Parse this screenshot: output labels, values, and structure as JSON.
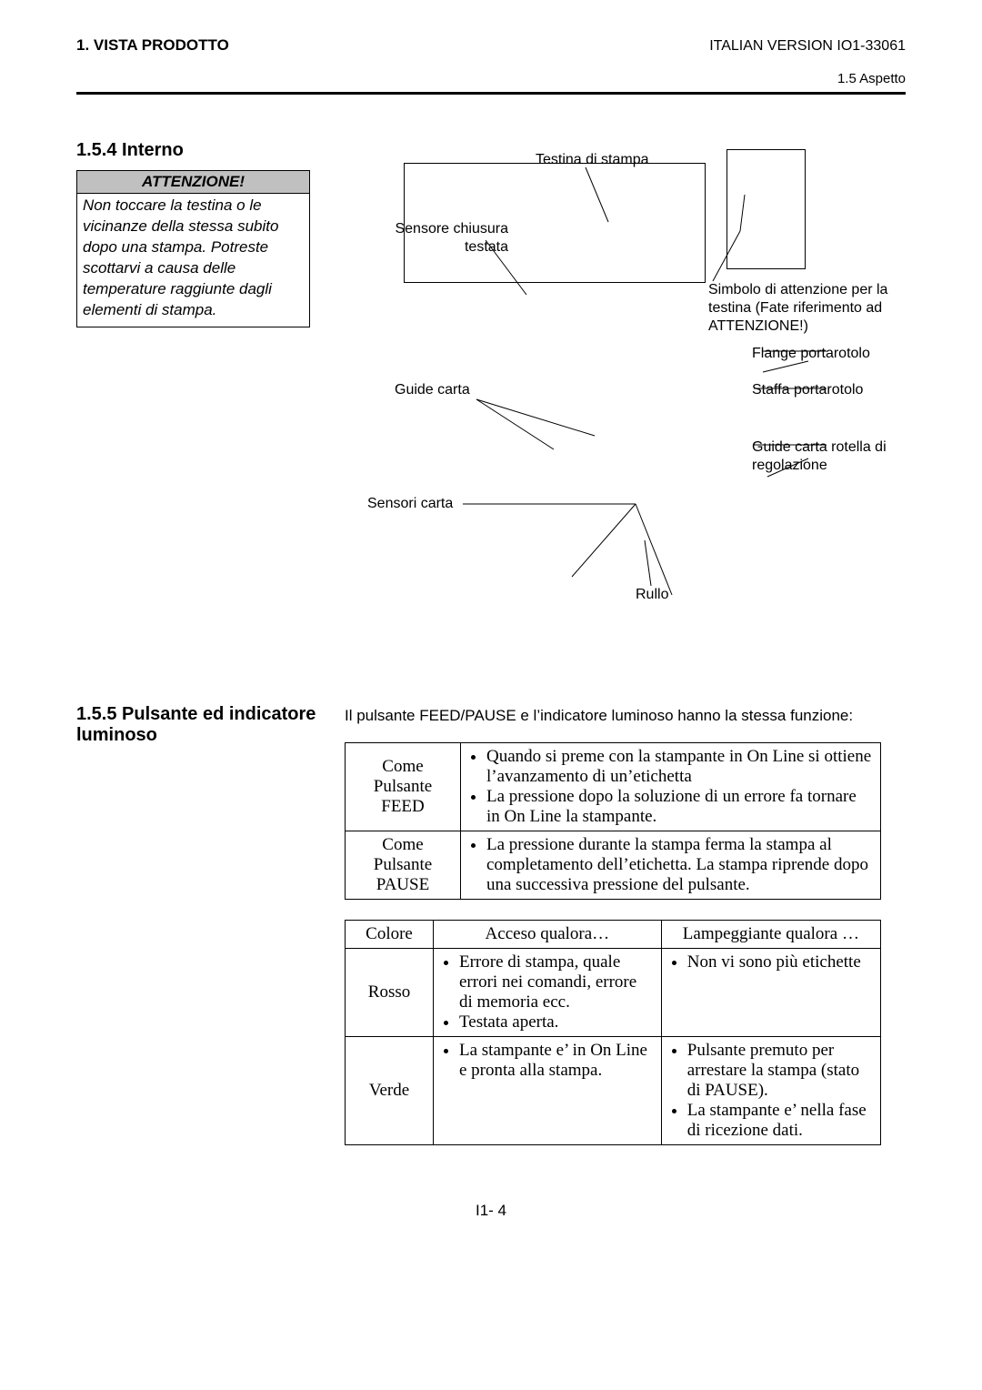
{
  "header": {
    "left": "1. VISTA PRODOTTO",
    "right": "ITALIAN VERSION IO1-33061",
    "sub": "1.5 Aspetto"
  },
  "section_154": {
    "heading": "1.5.4  Interno",
    "warn_title": "ATTENZIONE!",
    "warn_body": "Non toccare la testina o le vicinanze della stessa subito dopo una stampa. Potreste scottarvi a causa delle temperature raggiunte dagli elementi di stampa.",
    "labels": {
      "testina": "Testina di stampa",
      "sensore_chiusura": "Sensore chiusura testata",
      "simbolo": "Simbolo di attenzione per la testina (Fate riferimento ad ATTENZIONE!)",
      "flange": "Flange portarotolo",
      "guide_carta": "Guide carta",
      "staffa": "Staffa portarotolo",
      "guide_rotella": "Guide carta rotella di regolazione",
      "sensori_carta": "Sensori carta",
      "rullo": "Rullo"
    }
  },
  "section_155": {
    "heading": "1.5.5  Pulsante ed indicatore luminoso",
    "intro": "Il pulsante FEED/PAUSE e l’indicatore luminoso hanno la stessa funzione:",
    "table1": {
      "rows": [
        {
          "left": "Come Pulsante FEED",
          "right_items": [
            "Quando si preme con la stampante in On Line si ottiene l’avanzamento di un’etichetta",
            "La pressione dopo la soluzione di un errore  fa tornare in On Line la stampante."
          ]
        },
        {
          "left": "Come Pulsante PAUSE",
          "right_items": [
            "La pressione durante la stampa ferma la stampa al completamento dell’etichetta. La stampa riprende dopo una successiva pressione del pulsante."
          ]
        }
      ]
    },
    "table2": {
      "headers": [
        "Colore",
        "Acceso qualora…",
        "Lampeggiante qualora …"
      ],
      "rows": [
        {
          "c0": "Rosso",
          "c1_items": [
            "Errore di stampa, quale errori nei comandi, errore di memoria ecc.",
            "Testata aperta."
          ],
          "c2_items": [
            "Non vi sono più etichette"
          ]
        },
        {
          "c0": "Verde",
          "c1_items": [
            "La stampante e’ in On Line e pronta alla stampa."
          ],
          "c2_items": [
            "Pulsante premuto per arrestare la stampa (stato di PAUSE).",
            "La stampante e’ nella fase di ricezione dati."
          ]
        }
      ]
    }
  },
  "page_num": "I1- 4",
  "colors": {
    "bg": "#ffffff",
    "text": "#000000",
    "warn_bg": "#c0c0c0",
    "rule": "#000000"
  }
}
